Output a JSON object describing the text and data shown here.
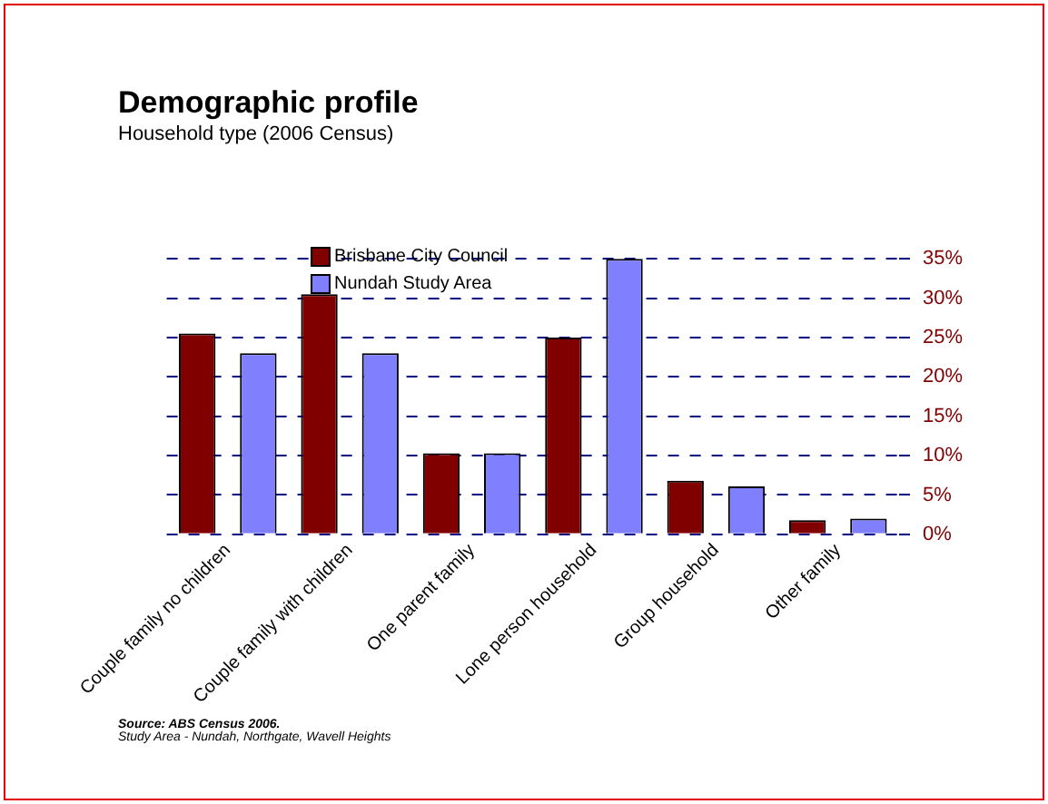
{
  "chart_data": {
    "type": "bar",
    "title": "Demographic profile",
    "subtitle": "Household type (2006 Census)",
    "categories": [
      "Couple family no children",
      "Couple family with children",
      "One parent family",
      "Lone person household",
      "Group household",
      "Other family"
    ],
    "series": [
      {
        "name": "Brisbane City Council",
        "color": "#800000",
        "values": [
          25.5,
          30.5,
          10.3,
          25,
          6.8,
          1.8
        ]
      },
      {
        "name": "Nundah Study Area",
        "color": "#8080ff",
        "values": [
          23,
          23,
          10.3,
          35,
          6.1,
          2
        ]
      }
    ],
    "ylim": [
      0,
      35
    ],
    "yticks": [
      {
        "value": 0,
        "label": "0%"
      },
      {
        "value": 5,
        "label": "5%"
      },
      {
        "value": 10,
        "label": "10%"
      },
      {
        "value": 15,
        "label": "15%"
      },
      {
        "value": 20,
        "label": "20%"
      },
      {
        "value": 25,
        "label": "25%"
      },
      {
        "value": 30,
        "label": "30%"
      },
      {
        "value": 35,
        "label": "35%"
      }
    ],
    "grid": "y",
    "legend": "top left",
    "annotations": [
      "Source: ABS Census 2006.",
      "Study Area - Nundah, Northgate, Wavell Heights"
    ]
  }
}
